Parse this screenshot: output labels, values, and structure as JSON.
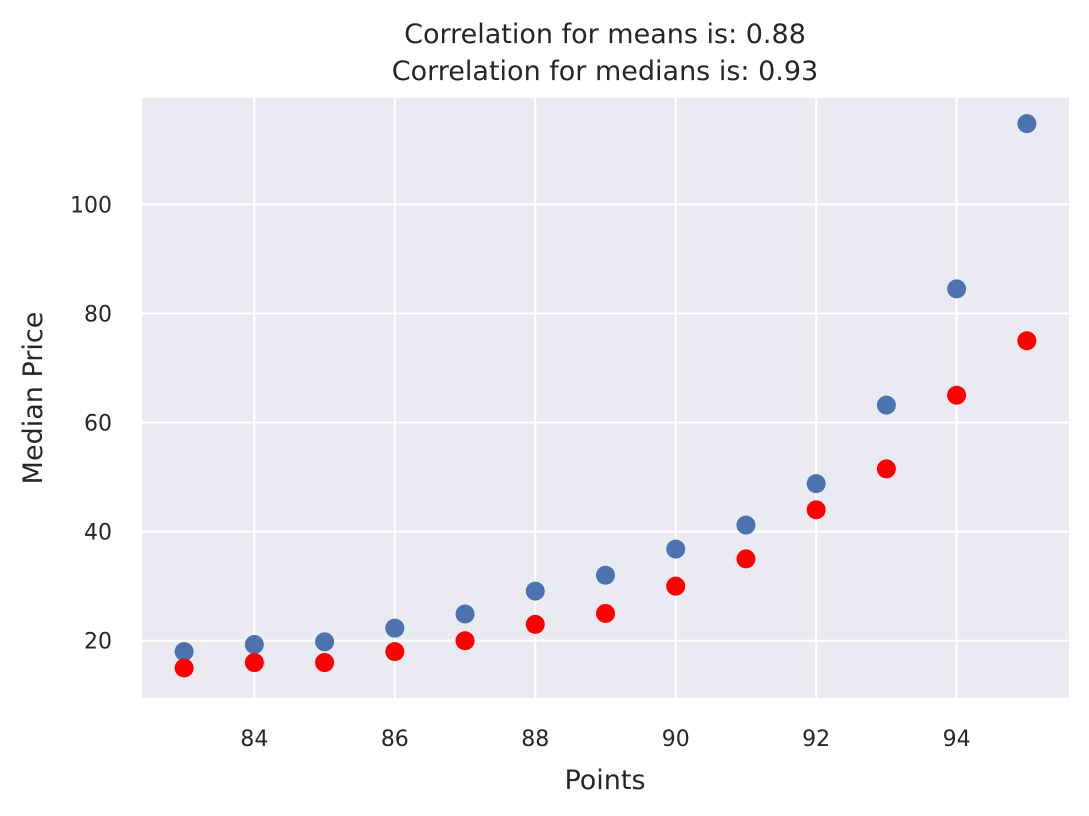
{
  "chart_data": {
    "type": "scatter",
    "title": [
      "Correlation for means is: 0.88",
      "Correlation for medians is: 0.93"
    ],
    "xlabel": "Points",
    "ylabel": "Median Price",
    "xlim": [
      82.4,
      95.6
    ],
    "ylim": [
      9.5,
      119.5
    ],
    "xticks": [
      84,
      86,
      88,
      90,
      92,
      94
    ],
    "yticks": [
      20,
      40,
      60,
      80,
      100
    ],
    "grid": true,
    "background": "#eaeaf2",
    "series": [
      {
        "color": "#4c72b0",
        "points": [
          {
            "x": 83,
            "y": 18
          },
          {
            "x": 84,
            "y": 19.3
          },
          {
            "x": 85,
            "y": 19.8
          },
          {
            "x": 86,
            "y": 22.3
          },
          {
            "x": 87,
            "y": 24.9
          },
          {
            "x": 88,
            "y": 29.1
          },
          {
            "x": 89,
            "y": 32
          },
          {
            "x": 90,
            "y": 36.8
          },
          {
            "x": 91,
            "y": 41.2
          },
          {
            "x": 92,
            "y": 48.8
          },
          {
            "x": 93,
            "y": 63.2
          },
          {
            "x": 94,
            "y": 84.5
          },
          {
            "x": 95,
            "y": 114.8
          }
        ]
      },
      {
        "color": "#ff0000",
        "points": [
          {
            "x": 83,
            "y": 15
          },
          {
            "x": 84,
            "y": 16
          },
          {
            "x": 85,
            "y": 16
          },
          {
            "x": 86,
            "y": 18
          },
          {
            "x": 87,
            "y": 20
          },
          {
            "x": 88,
            "y": 23
          },
          {
            "x": 89,
            "y": 25
          },
          {
            "x": 90,
            "y": 30
          },
          {
            "x": 91,
            "y": 35
          },
          {
            "x": 92,
            "y": 44
          },
          {
            "x": 93,
            "y": 51.5
          },
          {
            "x": 94,
            "y": 65
          },
          {
            "x": 95,
            "y": 75
          }
        ]
      }
    ]
  }
}
